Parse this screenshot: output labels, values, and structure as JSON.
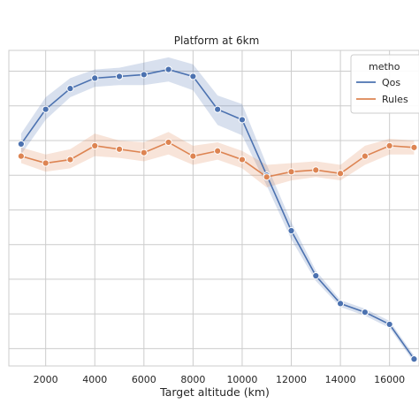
{
  "chart_data": {
    "type": "line",
    "title": "Platform at 6km",
    "xlabel": "Target altitude (km)",
    "ylabel": "",
    "xlim": [
      500,
      17200
    ],
    "ylim": [
      0.5,
      9.6
    ],
    "xticks": [
      2000,
      4000,
      6000,
      8000,
      10000,
      12000,
      14000,
      16000
    ],
    "xtick_labels": [
      "2000",
      "4000",
      "6000",
      "8000",
      "10000",
      "12000",
      "14000",
      "16000"
    ],
    "yticks": [
      1,
      2,
      3,
      4,
      5,
      6,
      7,
      8,
      9
    ],
    "grid": true,
    "legend": {
      "title": "metho",
      "placement": "top-right",
      "entries": [
        "Qos",
        "Rules"
      ]
    },
    "x": [
      1000,
      2000,
      3000,
      4000,
      5000,
      6000,
      7000,
      8000,
      9000,
      10000,
      11000,
      12000,
      13000,
      14000,
      15000,
      16000,
      17000
    ],
    "series": [
      {
        "name": "Qos",
        "color": "#4c72b0",
        "values": [
          6.9,
          7.9,
          8.5,
          8.8,
          8.85,
          8.9,
          9.05,
          8.85,
          7.9,
          7.6,
          6.0,
          4.4,
          3.1,
          2.3,
          2.05,
          1.7,
          0.7
        ],
        "lower": [
          6.6,
          7.6,
          8.25,
          8.55,
          8.6,
          8.6,
          8.7,
          8.45,
          7.45,
          7.15,
          5.7,
          4.15,
          2.95,
          2.2,
          1.95,
          1.6,
          0.6
        ],
        "upper": [
          7.2,
          8.25,
          8.8,
          9.05,
          9.1,
          9.25,
          9.4,
          9.2,
          8.3,
          8.05,
          6.3,
          4.65,
          3.25,
          2.4,
          2.15,
          1.8,
          0.8
        ]
      },
      {
        "name": "Rules",
        "color": "#dd8452",
        "values": [
          6.55,
          6.35,
          6.45,
          6.85,
          6.75,
          6.65,
          6.95,
          6.55,
          6.7,
          6.45,
          5.95,
          6.1,
          6.15,
          6.05,
          6.55,
          6.85,
          6.8
        ],
        "lower": [
          6.35,
          6.1,
          6.2,
          6.55,
          6.5,
          6.4,
          6.6,
          6.3,
          6.45,
          6.2,
          5.65,
          5.85,
          5.95,
          5.85,
          6.3,
          6.6,
          6.6
        ],
        "upper": [
          6.8,
          6.6,
          6.75,
          7.2,
          7.0,
          6.95,
          7.25,
          6.85,
          6.95,
          6.7,
          6.3,
          6.35,
          6.4,
          6.3,
          6.85,
          7.05,
          7.0
        ]
      }
    ]
  }
}
